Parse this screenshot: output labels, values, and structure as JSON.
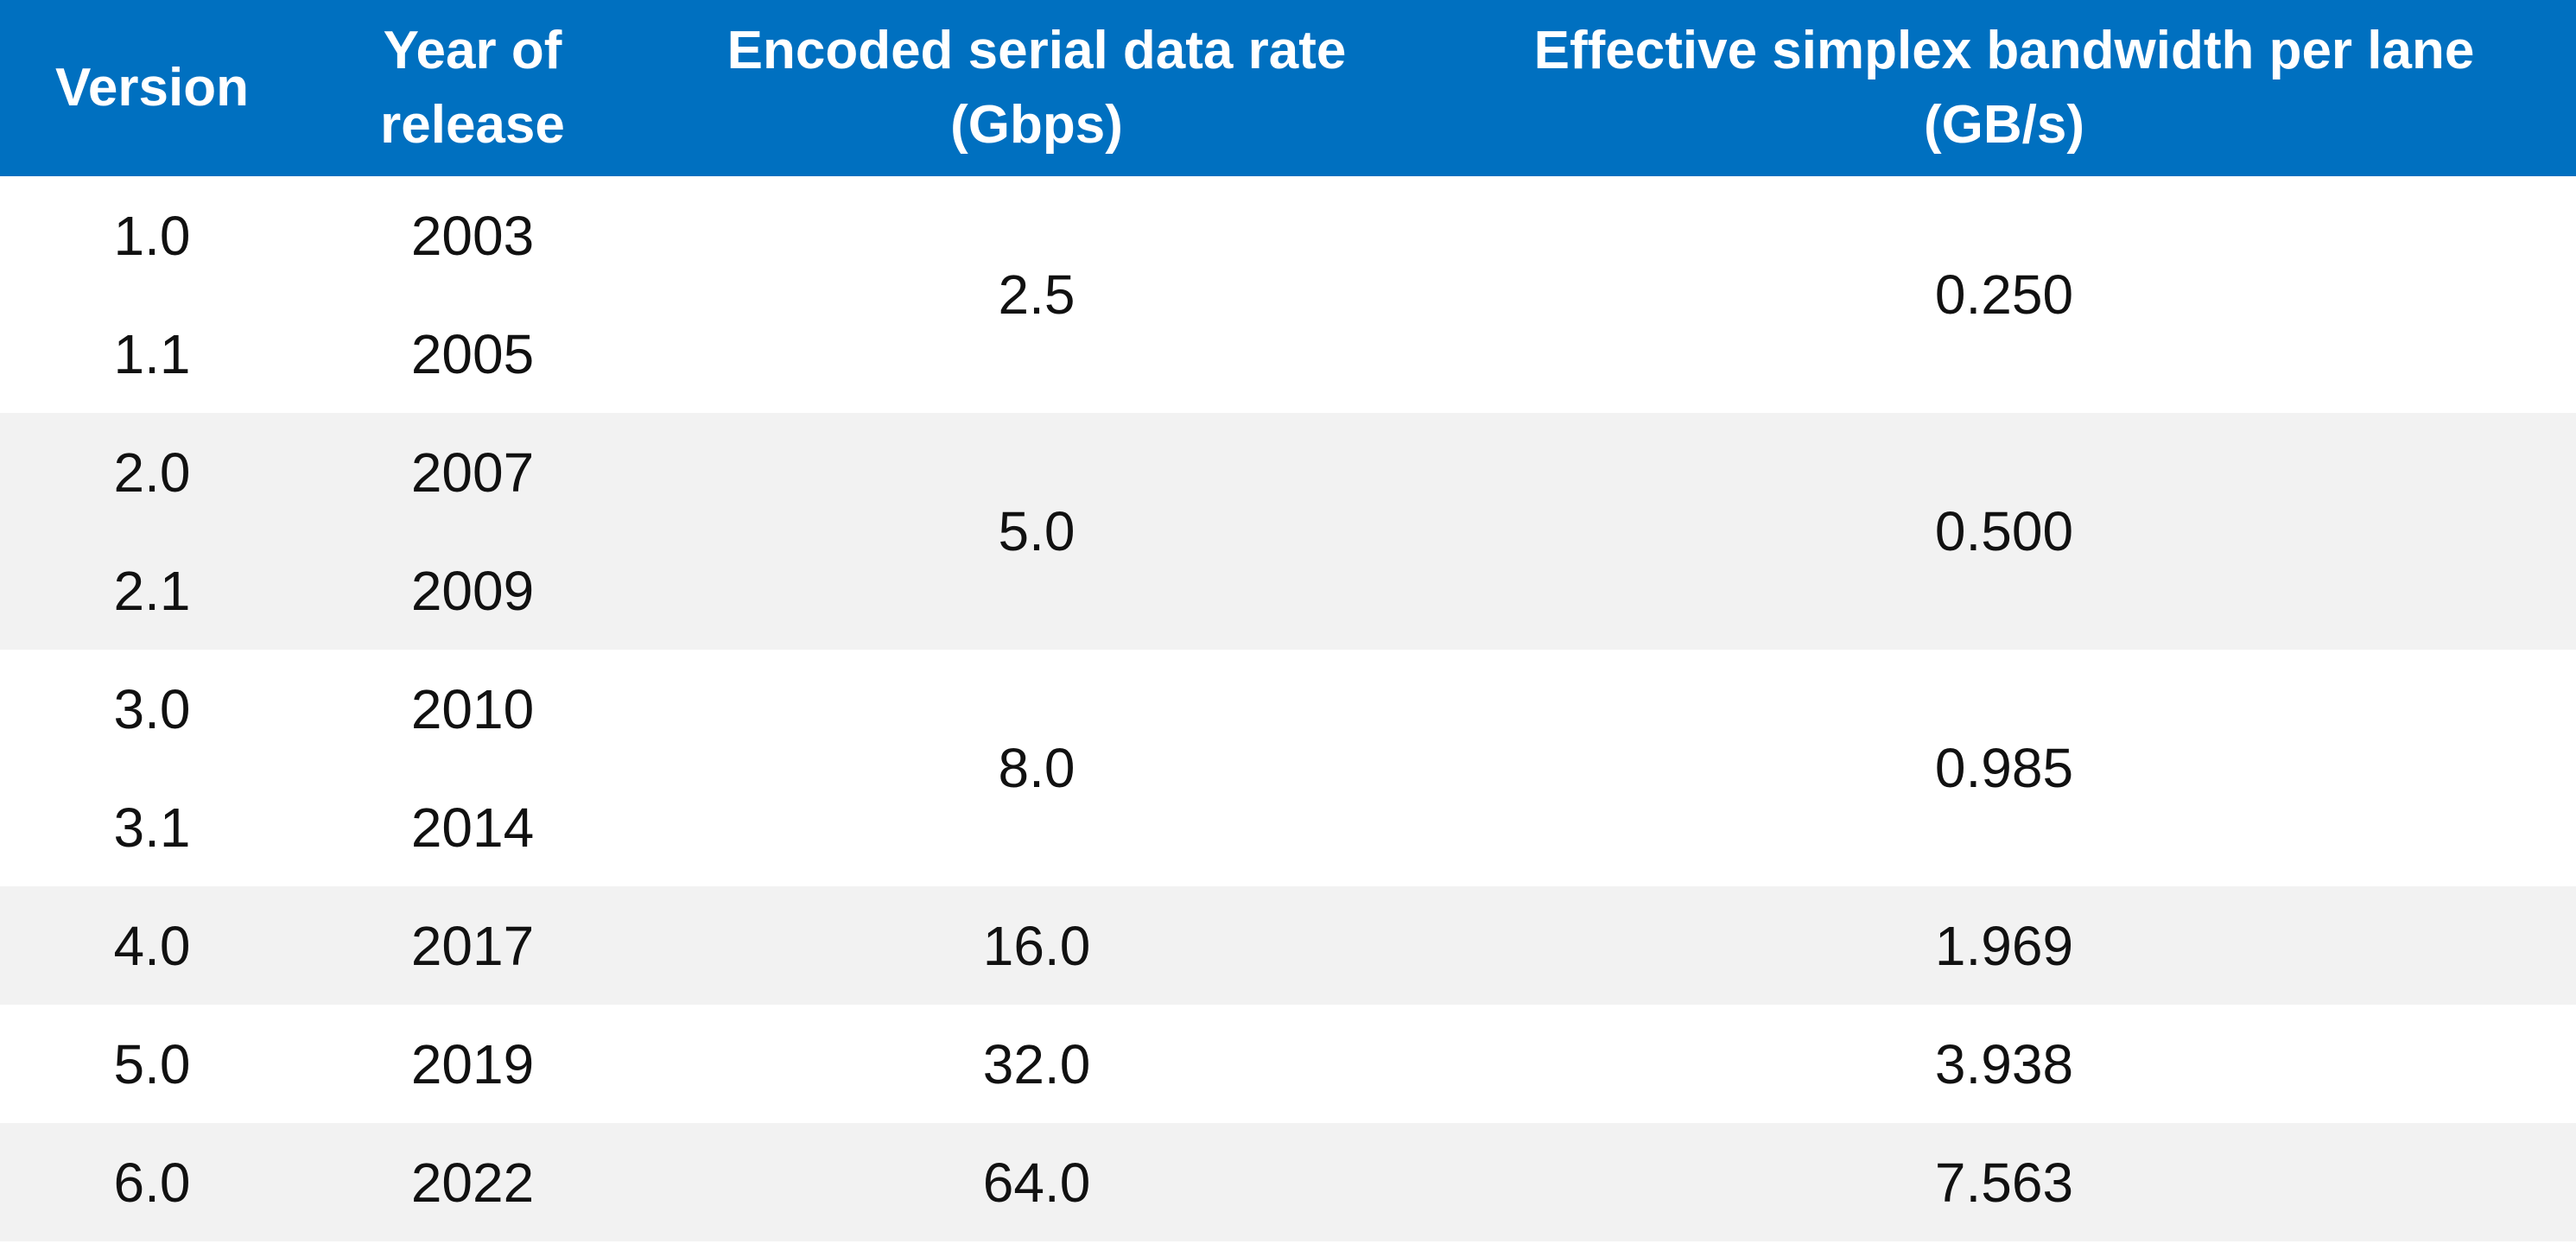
{
  "header": {
    "version": "Version",
    "year_line1": "Year of",
    "year_line2": "release",
    "rate_line1": "Encoded serial data rate",
    "rate_line2": "(Gbps)",
    "bandwidth_line1": "Effective simplex bandwidth per lane",
    "bandwidth_line2": "(GB/s)"
  },
  "groups": [
    {
      "rows": [
        {
          "version": "1.0",
          "year": "2003"
        },
        {
          "version": "1.1",
          "year": "2005"
        }
      ],
      "rate": "2.5",
      "bandwidth": "0.250"
    },
    {
      "rows": [
        {
          "version": "2.0",
          "year": "2007"
        },
        {
          "version": "2.1",
          "year": "2009"
        }
      ],
      "rate": "5.0",
      "bandwidth": "0.500"
    },
    {
      "rows": [
        {
          "version": "3.0",
          "year": "2010"
        },
        {
          "version": "3.1",
          "year": "2014"
        }
      ],
      "rate": "8.0",
      "bandwidth": "0.985"
    },
    {
      "rows": [
        {
          "version": "4.0",
          "year": "2017"
        }
      ],
      "rate": "16.0",
      "bandwidth": "1.969"
    },
    {
      "rows": [
        {
          "version": "5.0",
          "year": "2019"
        }
      ],
      "rate": "32.0",
      "bandwidth": "3.938"
    },
    {
      "rows": [
        {
          "version": "6.0",
          "year": "2022"
        }
      ],
      "rate": "64.0",
      "bandwidth": "7.563"
    }
  ],
  "colors": {
    "header_bg": "#0070C0",
    "header_text": "#FFFFFF",
    "band_gray": "#F2F2F2",
    "band_white": "#FFFFFF"
  }
}
